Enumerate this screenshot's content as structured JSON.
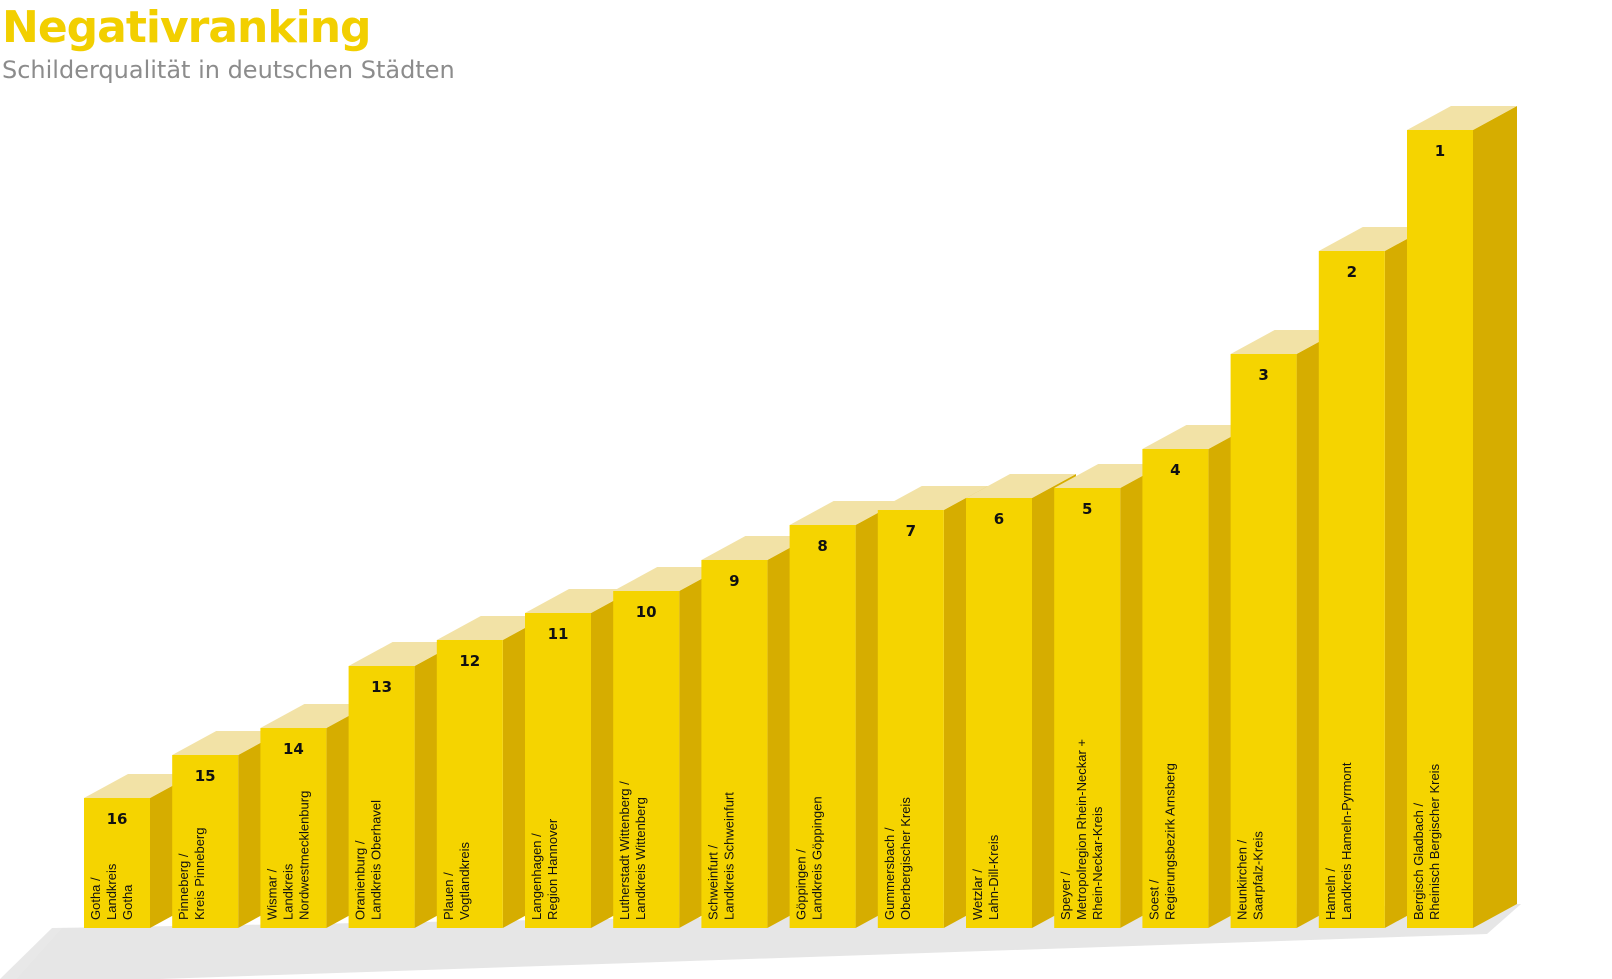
{
  "header": {
    "title": "Negativranking",
    "subtitle": "Schilderqualität in deutschen Städten"
  },
  "colors": {
    "title": "#f2cf00",
    "subtitle": "#8c8c8c",
    "bar_front": "#f5d400",
    "bar_side": "#d6ad00",
    "bar_top": "#f2e2a6",
    "floor": "#e6e6e6"
  },
  "chart_data": {
    "type": "bar",
    "title": "Negativranking",
    "subtitle": "Schilderqualität in deutschen Städten",
    "xlabel": "",
    "ylabel": "",
    "grid": false,
    "legend": "none",
    "style": "3d-columns",
    "note": "bar heights shown without a numeric axis; values are relative bar heights (arbitrary units) read off the picture",
    "ylim": [
      0,
      820
    ],
    "categories": [
      [
        "Gotha /",
        "Landkreis",
        "Gotha"
      ],
      [
        "Pinneberg /",
        "Kreis Pinneberg"
      ],
      [
        "Wismar /",
        "Landkreis",
        "Nordwestmecklenburg"
      ],
      [
        "Oranienburg /",
        "Landkreis Oberhavel"
      ],
      [
        "Plauen /",
        "Vogtlandkreis"
      ],
      [
        "Langenhagen /",
        "Region Hannover"
      ],
      [
        "Lutherstadt Wittenberg /",
        "Landkreis Wittenberg"
      ],
      [
        "Schweinfurt /",
        "Landkreis Schweinfurt"
      ],
      [
        "Göppingen /",
        "Landkreis Göppingen"
      ],
      [
        "Gummersbach /",
        "Oberbergischer Kreis"
      ],
      [
        "Wetzlar /",
        "Lahn-Dill-Kreis"
      ],
      [
        "Speyer /",
        "Metropolregion Rhein-Neckar +",
        "Rhein-Neckar-Kreis"
      ],
      [
        "Soest /",
        "Regierungsbezirk Arnsberg"
      ],
      [
        "Neunkirchen /",
        "Saarpfalz-Kreis"
      ],
      [
        "Hameln /",
        "Landkreis Hameln-Pyrmont"
      ],
      [
        "Bergisch Gladbach /",
        "Rheinisch Bergischer Kreis"
      ]
    ],
    "ranks": [
      "16",
      "15",
      "14",
      "13",
      "12",
      "11",
      "10",
      "9",
      "8",
      "7",
      "6",
      "5",
      "4",
      "3",
      "2",
      "1"
    ],
    "values": [
      130,
      173,
      200,
      262,
      288,
      315,
      337,
      368,
      403,
      418,
      430,
      440,
      479,
      574,
      677,
      798
    ]
  }
}
